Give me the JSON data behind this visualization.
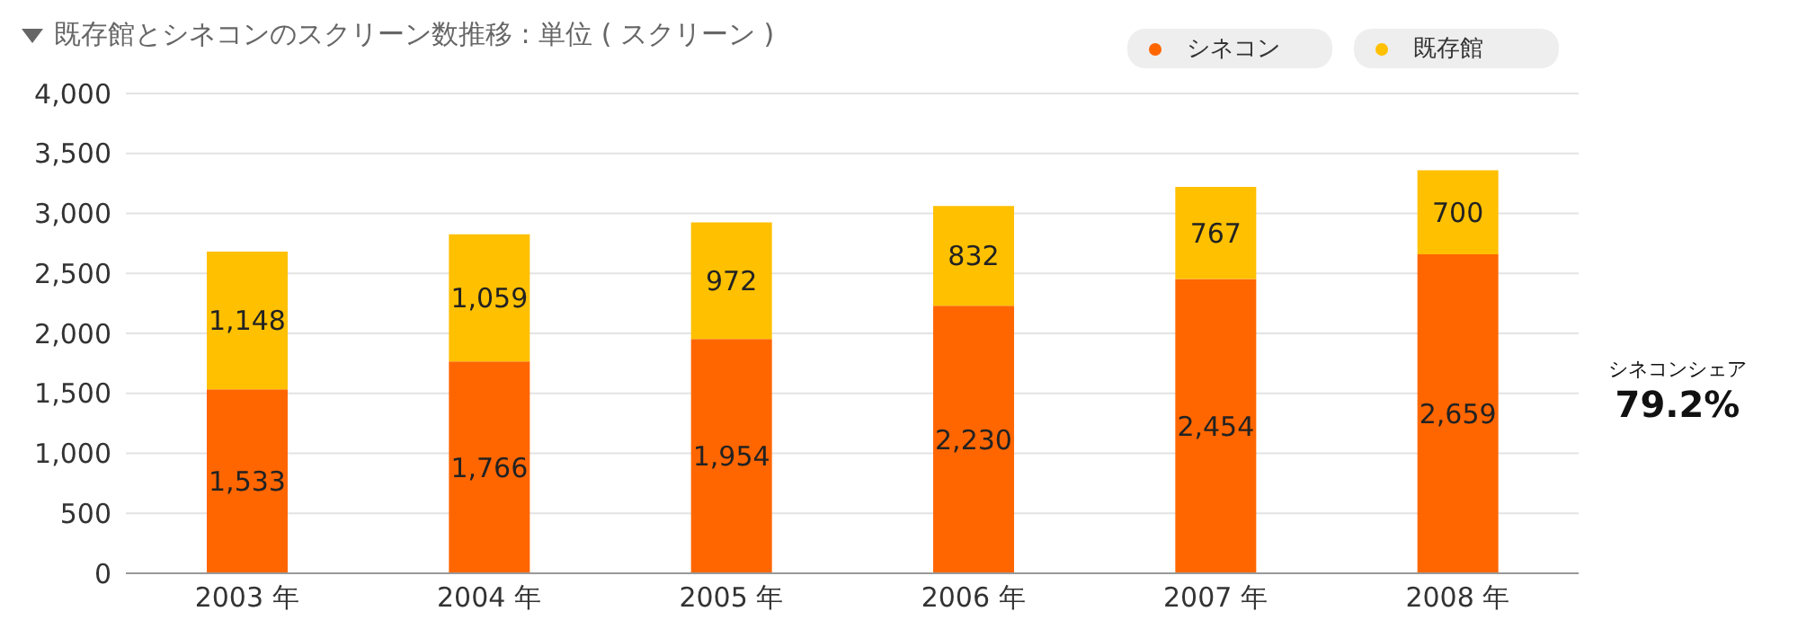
{
  "chart_data": {
    "type": "bar",
    "title": "既存館とシネコンのスクリーン数推移 : 単位 ( スクリーン )",
    "categories": [
      "2003 年",
      "2004 年",
      "2005 年",
      "2006 年",
      "2007 年",
      "2008 年"
    ],
    "stacked": true,
    "series": [
      {
        "name": "シネコン",
        "color": "#ff6600",
        "values": [
          1533,
          1766,
          1954,
          2230,
          2454,
          2659
        ],
        "value_labels": [
          "1,533",
          "1,766",
          "1,954",
          "2,230",
          "2,454",
          "2,659"
        ]
      },
      {
        "name": "既存館",
        "color": "#ffc000",
        "values": [
          1148,
          1059,
          972,
          832,
          767,
          700
        ],
        "value_labels": [
          "1,148",
          "1,059",
          "972",
          "832",
          "767",
          "700"
        ]
      }
    ],
    "ylim": [
      0,
      4000
    ],
    "yticks": [
      0,
      500,
      {
        "value": 1000,
        "label": "1,000"
      },
      {
        "value": 1500,
        "label": "1,500"
      },
      {
        "value": 2000,
        "label": "2,000"
      },
      {
        "value": 2500,
        "label": "2,500"
      },
      {
        "value": 3000,
        "label": "3,000"
      },
      {
        "value": 3500,
        "label": "3,500"
      },
      {
        "value": 4000,
        "label": "4,000"
      }
    ],
    "grid": "y",
    "legend": "top right",
    "annotations": [
      "シネコンシェア",
      "79.2%"
    ]
  }
}
